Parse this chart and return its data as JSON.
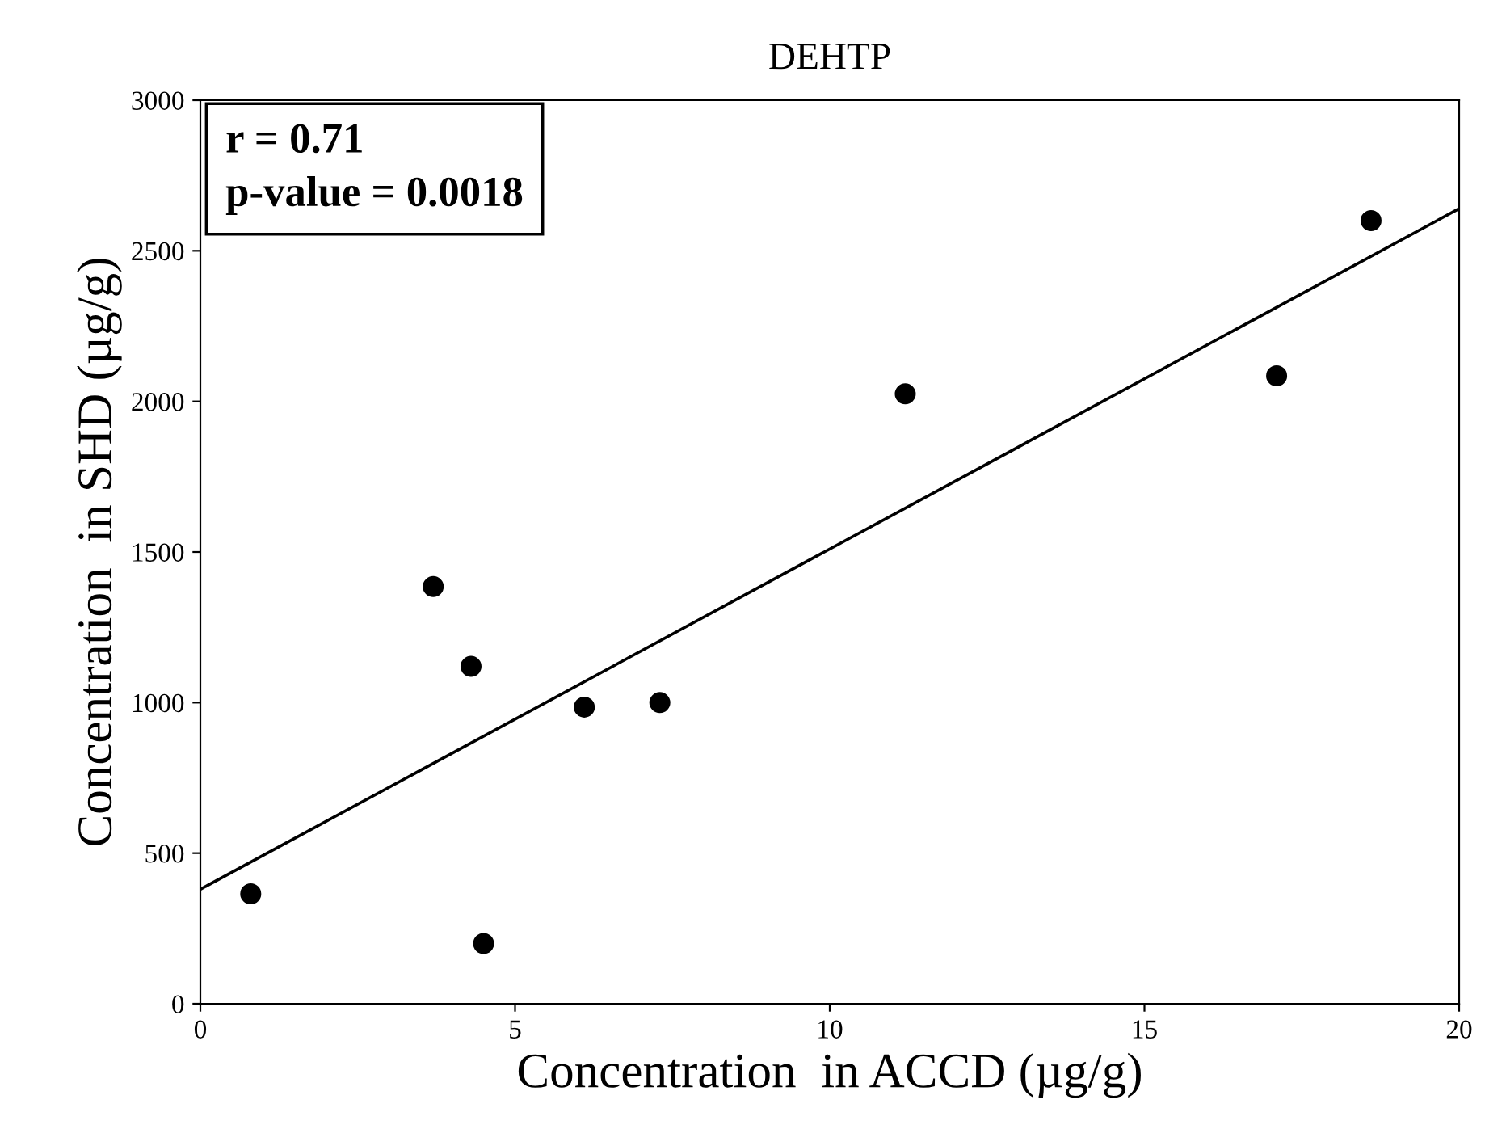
{
  "chart_data": {
    "type": "scatter",
    "title": "DEHTP",
    "xlabel": "Concentration  in ACCD (µg/g)",
    "ylabel": "Concentration  in SHD (µg/g)",
    "series": [
      {
        "color": "#000000",
        "marker": "circle",
        "x": [
          0.8,
          3.7,
          4.3,
          4.5,
          6.1,
          7.3,
          11.2,
          17.1,
          18.6
        ],
        "values": [
          365,
          1385,
          1120,
          200,
          985,
          1000,
          2025,
          2085,
          2600
        ]
      },
      {
        "type": "line",
        "color": "#000000",
        "x": [
          0,
          20
        ],
        "values": [
          380,
          2640
        ]
      }
    ],
    "annotations": [
      "r = 0.71",
      "p-value = 0.0018"
    ],
    "xlim": [
      0,
      20
    ],
    "xticks": [
      0,
      5,
      10,
      15,
      20
    ],
    "ylim": [
      0,
      3000
    ],
    "yticks": [
      0,
      500,
      1000,
      1500,
      2000,
      2500,
      3000
    ],
    "grid": false,
    "legend": false
  }
}
